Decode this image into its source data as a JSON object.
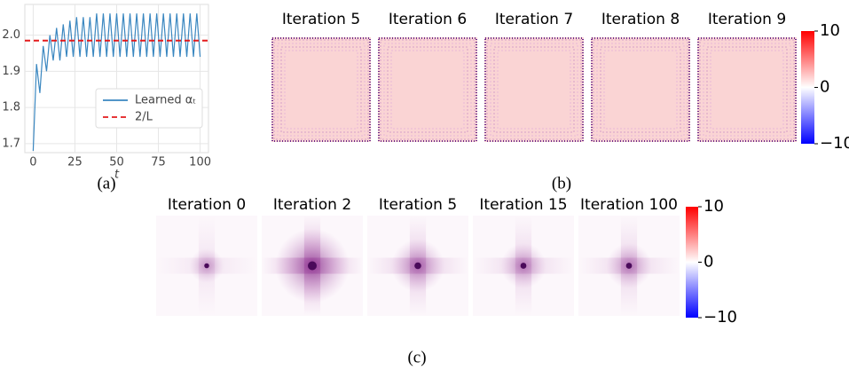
{
  "chart_data": [
    {
      "type": "line",
      "caption": "(a)",
      "xlabel": "t",
      "x": [
        0,
        2,
        4,
        6,
        8,
        10,
        12,
        14,
        16,
        18,
        20,
        22,
        24,
        26,
        28,
        30,
        32,
        34,
        36,
        38,
        40,
        42,
        44,
        46,
        48,
        50,
        52,
        54,
        56,
        58,
        60,
        62,
        64,
        66,
        68,
        70,
        72,
        74,
        76,
        78,
        80,
        82,
        84,
        86,
        88,
        90,
        92,
        94,
        96,
        98,
        100
      ],
      "series": [
        {
          "name": "Learned αₜ",
          "color": "#3a87c0",
          "values": [
            1.68,
            1.92,
            1.84,
            1.97,
            1.9,
            2.0,
            1.93,
            2.02,
            1.93,
            2.03,
            1.94,
            2.04,
            1.94,
            2.05,
            1.94,
            2.05,
            1.94,
            2.05,
            1.94,
            2.06,
            1.94,
            2.06,
            1.94,
            2.06,
            1.94,
            2.06,
            1.94,
            2.06,
            1.94,
            2.06,
            1.94,
            2.06,
            1.94,
            2.06,
            1.94,
            2.06,
            1.94,
            2.06,
            1.94,
            2.06,
            1.94,
            2.06,
            1.94,
            2.06,
            1.94,
            2.06,
            1.94,
            2.06,
            1.94,
            2.06,
            1.94
          ]
        }
      ],
      "reference_line": {
        "name": "2/L",
        "value": 1.985,
        "color": "#e31a1c"
      },
      "xlim": [
        -5,
        105
      ],
      "xticks": [
        0,
        25,
        50,
        75,
        100
      ],
      "ylim": [
        1.675,
        2.085
      ],
      "yticks": [
        1.7,
        1.8,
        1.9,
        {
          "value": 2,
          "label": "2.0"
        }
      ],
      "grid": true,
      "legend": "lower right"
    },
    {
      "type": "heatmap-grid",
      "caption": "(b)",
      "panels": [
        "Iteration 5",
        "Iteration 6",
        "Iteration 7",
        "Iteration 8",
        "Iteration 9"
      ],
      "colorbar": {
        "lim": [
          -10,
          10
        ],
        "ticks": [
          10,
          0,
          {
            "value": -10,
            "label": "−10"
          }
        ]
      }
    },
    {
      "type": "heatmap-grid",
      "caption": "(c)",
      "panels": [
        "Iteration 0",
        "Iteration 2",
        "Iteration 5",
        "Iteration 15",
        "Iteration 100"
      ],
      "colorbar": {
        "lim": [
          -10,
          10
        ],
        "ticks": [
          10,
          0,
          {
            "value": -10,
            "label": "−10"
          }
        ]
      }
    }
  ]
}
